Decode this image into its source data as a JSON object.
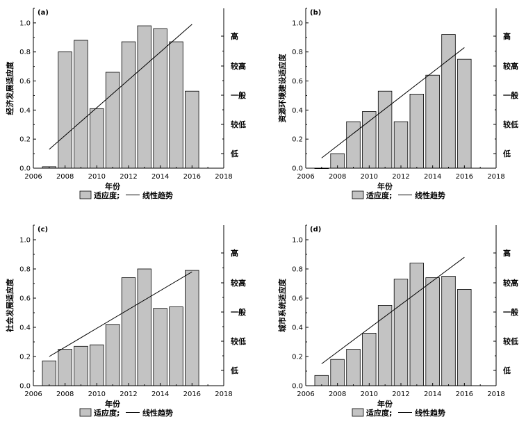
{
  "chart_data": [
    {
      "type": "bar",
      "panel_label": "(a)",
      "ylabel": "经济发展适应度",
      "xlabel": "年份",
      "x": [
        2007,
        2008,
        2009,
        2010,
        2011,
        2012,
        2013,
        2014,
        2015,
        2016
      ],
      "values": [
        0.01,
        0.8,
        0.88,
        0.41,
        0.66,
        0.87,
        0.98,
        0.96,
        0.87,
        0.53
      ],
      "trend": {
        "x": [
          2007,
          2016
        ],
        "y": [
          0.13,
          0.99
        ]
      },
      "xlim": [
        2006,
        2018
      ],
      "ylim": [
        0,
        1.1
      ],
      "xticks": [
        "2006",
        "2008",
        "2010",
        "2012",
        "2014",
        "2016",
        "2018"
      ],
      "yticks": [
        "0.0",
        "0.2",
        "0.4",
        "0.6",
        "0.8",
        "1.0"
      ],
      "right_levels": [
        "高",
        "较高",
        "一般",
        "较低",
        "低"
      ],
      "legend": {
        "bar": "适应度;",
        "line": "线性趋势"
      }
    },
    {
      "type": "bar",
      "panel_label": "(b)",
      "ylabel": "资源环境建设适应度",
      "xlabel": "年份",
      "x": [
        2007,
        2008,
        2009,
        2010,
        2011,
        2012,
        2013,
        2014,
        2015,
        2016
      ],
      "values": [
        0.0,
        0.1,
        0.32,
        0.39,
        0.53,
        0.32,
        0.51,
        0.64,
        0.92,
        0.75
      ],
      "trend": {
        "x": [
          2007,
          2016
        ],
        "y": [
          0.07,
          0.83
        ]
      },
      "xlim": [
        2006,
        2018
      ],
      "ylim": [
        0,
        1.1
      ],
      "xticks": [
        "2006",
        "2008",
        "2010",
        "2012",
        "2014",
        "2016",
        "2018"
      ],
      "yticks": [
        "0.0",
        "0.2",
        "0.4",
        "0.6",
        "0.8",
        "1.0"
      ],
      "right_levels": [
        "高",
        "较高",
        "一般",
        "较低",
        "低"
      ],
      "legend": {
        "bar": "适应度;",
        "line": "线性趋势"
      }
    },
    {
      "type": "bar",
      "panel_label": "(c)",
      "ylabel": "社会发展适应度",
      "xlabel": "年份",
      "x": [
        2007,
        2008,
        2009,
        2010,
        2011,
        2012,
        2013,
        2014,
        2015,
        2016
      ],
      "values": [
        0.17,
        0.25,
        0.27,
        0.28,
        0.42,
        0.74,
        0.8,
        0.53,
        0.54,
        0.79
      ],
      "trend": {
        "x": [
          2007,
          2016
        ],
        "y": [
          0.2,
          0.78
        ]
      },
      "xlim": [
        2006,
        2018
      ],
      "ylim": [
        0,
        1.1
      ],
      "xticks": [
        "2006",
        "2008",
        "2010",
        "2012",
        "2014",
        "2016",
        "2018"
      ],
      "yticks": [
        "0.0",
        "0.2",
        "0.4",
        "0.6",
        "0.8",
        "1.0"
      ],
      "right_levels": [
        "高",
        "较高",
        "一般",
        "较低",
        "低"
      ],
      "legend": {
        "bar": "适应度;",
        "line": "线性趋势"
      }
    },
    {
      "type": "bar",
      "panel_label": "(d)",
      "ylabel": "城市系统适应度",
      "xlabel": "年份",
      "x": [
        2007,
        2008,
        2009,
        2010,
        2011,
        2012,
        2013,
        2014,
        2015,
        2016
      ],
      "values": [
        0.07,
        0.18,
        0.25,
        0.36,
        0.55,
        0.73,
        0.84,
        0.74,
        0.75,
        0.66
      ],
      "trend": {
        "x": [
          2007,
          2016
        ],
        "y": [
          0.15,
          0.88
        ]
      },
      "xlim": [
        2006,
        2018
      ],
      "ylim": [
        0,
        1.1
      ],
      "xticks": [
        "2006",
        "2008",
        "2010",
        "2012",
        "2014",
        "2016",
        "2018"
      ],
      "yticks": [
        "0.0",
        "0.2",
        "0.4",
        "0.6",
        "0.8",
        "1.0"
      ],
      "right_levels": [
        "高",
        "较高",
        "一般",
        "较低",
        "低"
      ],
      "legend": {
        "bar": "适应度;",
        "line": "线性趋势"
      }
    }
  ]
}
